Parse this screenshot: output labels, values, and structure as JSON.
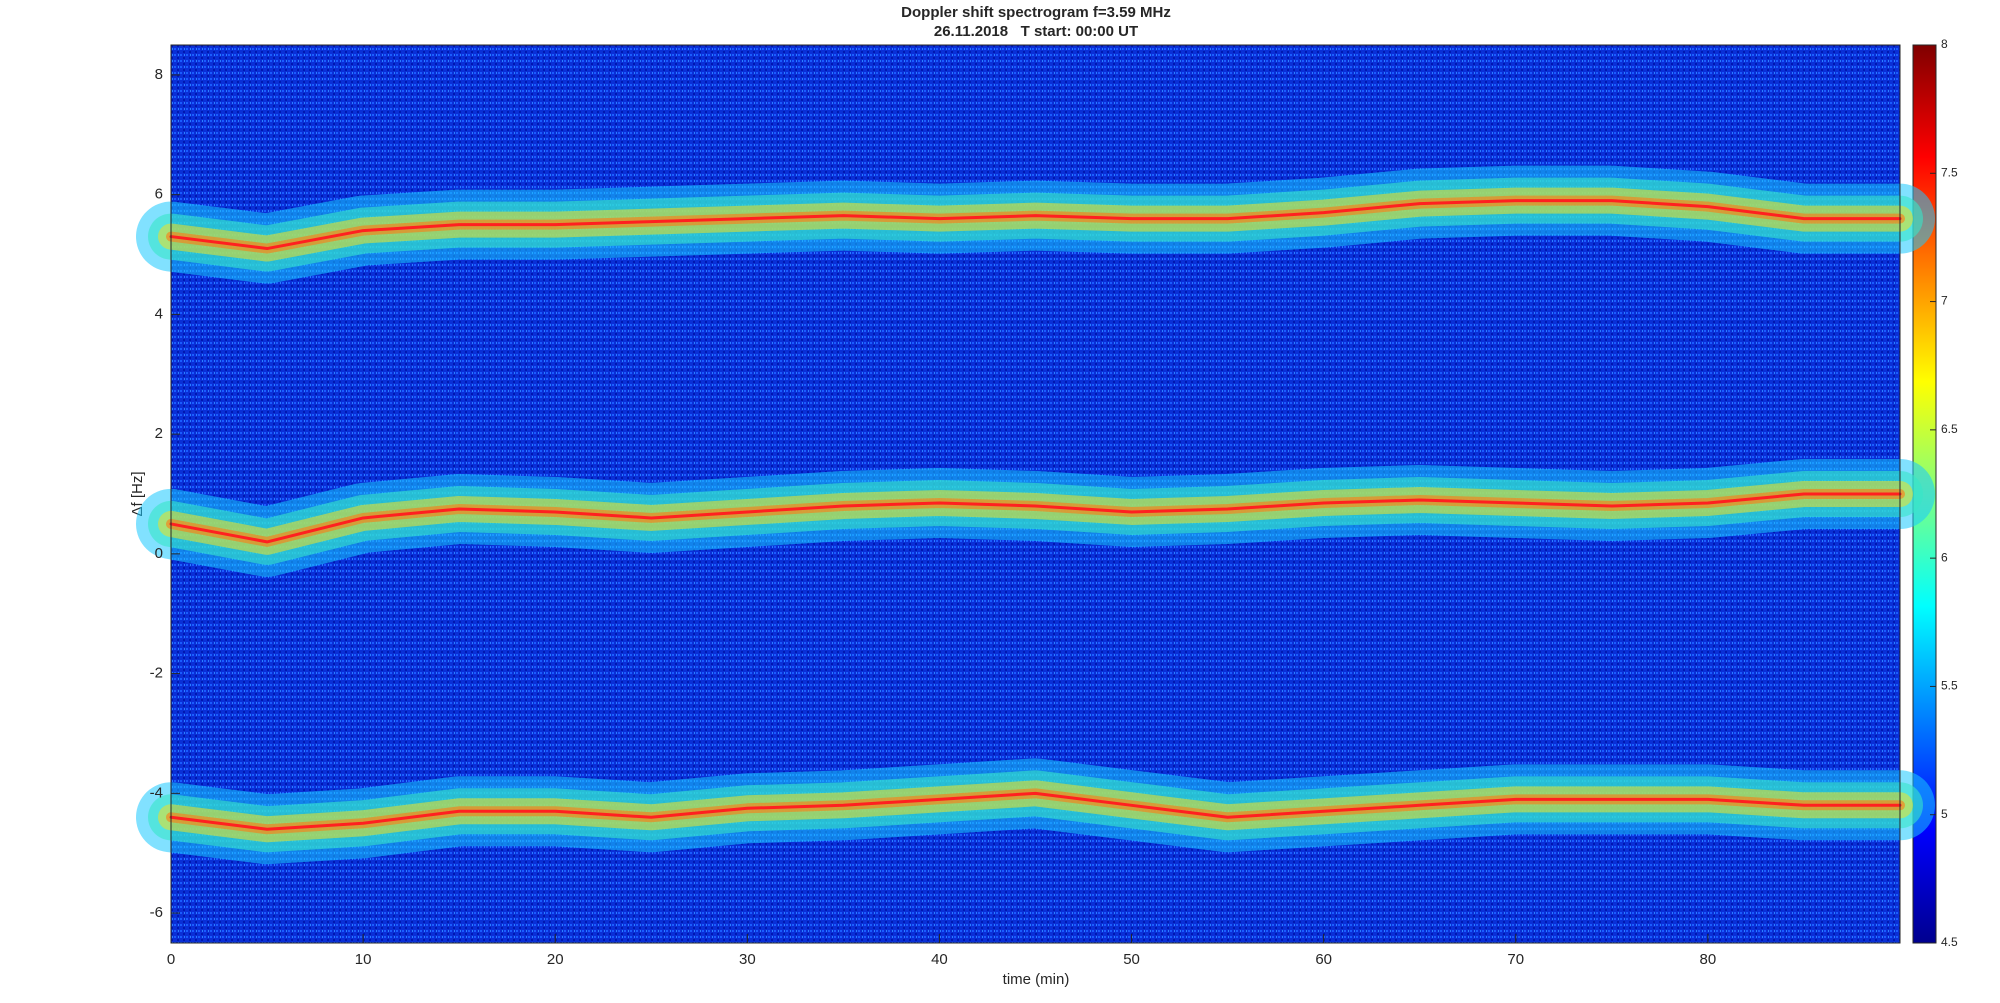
{
  "chart_data": {
    "type": "spectrogram",
    "title": "Doppler shift spectrogram f=3.59 MHz",
    "subtitle": "26.11.2018   T start: 00:00 UT",
    "x_label": "time (min)",
    "y_label": "Δf [Hz]",
    "x": [
      0,
      5,
      10,
      15,
      20,
      25,
      30,
      35,
      40,
      45,
      50,
      55,
      60,
      65,
      70,
      75,
      80,
      85,
      90
    ],
    "series": [
      {
        "color": "#ff2020",
        "values": [
          5.3,
          5.1,
          5.4,
          5.5,
          5.5,
          5.55,
          5.6,
          5.65,
          5.6,
          5.65,
          5.6,
          5.6,
          5.7,
          5.85,
          5.9,
          5.9,
          5.8,
          5.6,
          5.6
        ]
      },
      {
        "color": "#ff2020",
        "values": [
          0.5,
          0.2,
          0.6,
          0.75,
          0.7,
          0.6,
          0.7,
          0.8,
          0.85,
          0.8,
          0.7,
          0.75,
          0.85,
          0.9,
          0.85,
          0.8,
          0.85,
          1.0,
          1.0
        ]
      },
      {
        "color": "#ff2020",
        "values": [
          -4.4,
          -4.6,
          -4.5,
          -4.3,
          -4.3,
          -4.4,
          -4.25,
          -4.2,
          -4.1,
          -4.0,
          -4.2,
          -4.4,
          -4.3,
          -4.2,
          -4.1,
          -4.1,
          -4.1,
          -4.2,
          -4.2
        ]
      }
    ],
    "xlim": [
      0,
      90
    ],
    "xticks": [
      0,
      10,
      20,
      30,
      40,
      50,
      60,
      70,
      80
    ],
    "ylim": [
      -6.5,
      8.5
    ],
    "yticks": [
      -6,
      -4,
      -2,
      0,
      2,
      4,
      6,
      8
    ],
    "clim": [
      4.5,
      8
    ],
    "cticks": [
      4.5,
      5,
      5.5,
      6,
      6.5,
      7,
      7.5,
      8
    ]
  }
}
